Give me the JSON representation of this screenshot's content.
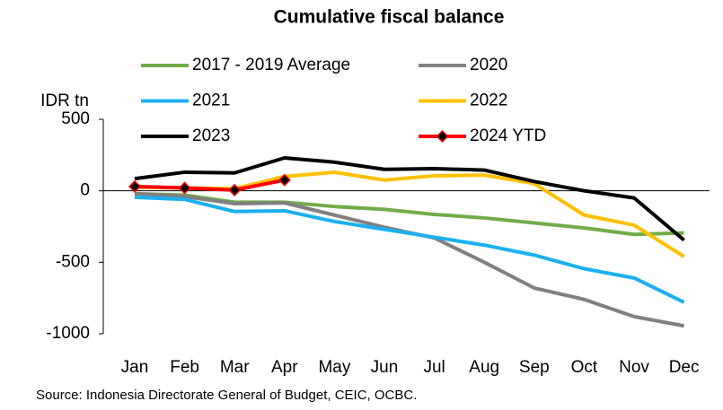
{
  "chart_data": {
    "type": "line",
    "title": "Cumulative fiscal balance",
    "y_label": "IDR tn",
    "source": "Source: Indonesia Directorate General of Budget, CEIC, OCBC.",
    "categories": [
      "Jan",
      "Feb",
      "Mar",
      "Apr",
      "May",
      "Jun",
      "Jul",
      "Aug",
      "Sep",
      "Oct",
      "Nov",
      "Dec"
    ],
    "ylim": [
      -1000,
      500
    ],
    "yticks": [
      500,
      0,
      -500,
      -1000
    ],
    "grid": false,
    "series": [
      {
        "name": "2017 - 2019 Average",
        "color": "#70ad47",
        "values": [
          -20,
          -30,
          -80,
          -80,
          -110,
          -130,
          -165,
          -190,
          -225,
          -260,
          -305,
          -295
        ]
      },
      {
        "name": "2020",
        "color": "#808080",
        "values": [
          -20,
          -40,
          -90,
          -85,
          -170,
          -255,
          -330,
          -500,
          -680,
          -760,
          -880,
          -945
        ]
      },
      {
        "name": "2021",
        "color": "#1cb0f0",
        "values": [
          -45,
          -60,
          -145,
          -140,
          -215,
          -270,
          -325,
          -380,
          -450,
          -545,
          -610,
          -780
        ]
      },
      {
        "name": "2022",
        "color": "#ffc000",
        "values": [
          25,
          20,
          15,
          100,
          130,
          75,
          105,
          110,
          50,
          -170,
          -240,
          -460
        ]
      },
      {
        "name": "2023",
        "color": "#000000",
        "values": [
          85,
          130,
          125,
          230,
          200,
          150,
          155,
          145,
          65,
          0,
          -50,
          -345
        ]
      },
      {
        "name": "2024 YTD",
        "color": "#ff0000",
        "marker": "diamond",
        "values": [
          30,
          20,
          5,
          75,
          null,
          null,
          null,
          null,
          null,
          null,
          null,
          null
        ]
      }
    ]
  }
}
